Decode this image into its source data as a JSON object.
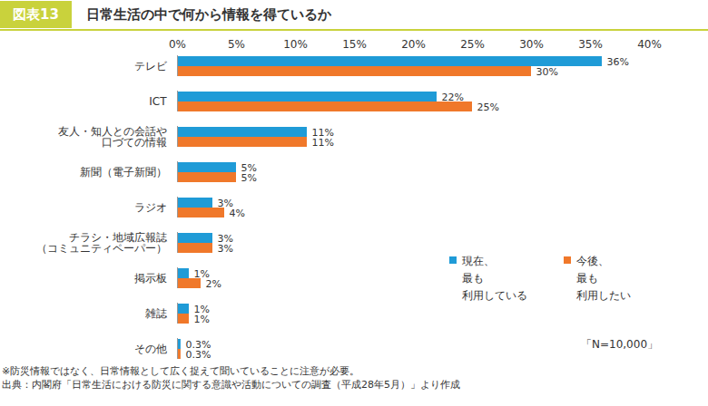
{
  "chart_data": {
    "type": "bar",
    "orientation": "horizontal",
    "badge": "図表13",
    "title": "日常生活の中で何から情報を得ているか",
    "categories": [
      "テレビ",
      "ICT",
      "友人・知人との会話や\n口づての情報",
      "新聞（電子新聞）",
      "ラジオ",
      "チラシ・地域広報誌\n（コミュニティペーパー）",
      "掲示板",
      "雑誌",
      "その他"
    ],
    "series": [
      {
        "name": "現在、\n最も\n利用している",
        "color": "#1f9bd7",
        "values": [
          36,
          22,
          11,
          5,
          3,
          3,
          1,
          1,
          0.3
        ],
        "value_labels": [
          "36%",
          "22%",
          "11%",
          "5%",
          "3%",
          "3%",
          "1%",
          "1%",
          "0.3%"
        ]
      },
      {
        "name": "今後、\n最も\n利用したい",
        "color": "#f0782a",
        "values": [
          30,
          25,
          11,
          5,
          4,
          3,
          2,
          1,
          0.3
        ],
        "value_labels": [
          "30%",
          "25%",
          "11%",
          "5%",
          "4%",
          "3%",
          "2%",
          "1%",
          "0.3%"
        ]
      }
    ],
    "xlim": [
      0,
      40
    ],
    "xticks": [
      {
        "value": 0,
        "label": "0%"
      },
      {
        "value": 5,
        "label": "5%"
      },
      {
        "value": 10,
        "label": "10%"
      },
      {
        "value": 15,
        "label": "15%"
      },
      {
        "value": 20,
        "label": "20%"
      },
      {
        "value": 25,
        "label": "25%"
      },
      {
        "value": 30,
        "label": "30%"
      },
      {
        "value": 35,
        "label": "35%"
      },
      {
        "value": 40,
        "label": "40%"
      }
    ],
    "grid": false,
    "data_labels": true,
    "legend": "bottom-right",
    "annotation": "「N=10,000」",
    "notes": [
      "※防災情報ではなく、日常情報として広く捉えて聞いていることに注意が必要。",
      "出典：内閣府「日常生活における防災に関する意識や活動についての調査（平成28年5月）」より作成"
    ]
  }
}
